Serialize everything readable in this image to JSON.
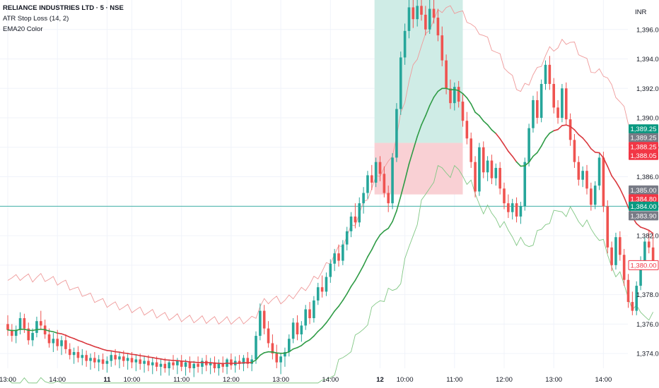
{
  "legend": {
    "title": "RELIANCE INDUSTRIES LTD · 5 · NSE",
    "indicator1": "ATR Stop Loss (14, 2)",
    "indicator2": "EMA20 Color"
  },
  "currency": "INR",
  "colors": {
    "up": "#26a69a",
    "down": "#ef5350",
    "ema": "#d9383e",
    "ema_up": "#2e9b45",
    "atr_upper": "#ef9a9a",
    "atr_lower": "#81c784",
    "profit_zone": "#cfece6",
    "loss_zone": "#f9d0d4",
    "grid": "#f0f3fa"
  },
  "chart_data": {
    "type": "candlestick",
    "ylim": [
      1373,
      1398
    ],
    "y_ticks": [
      "1,374.00",
      "1,376.00",
      "1,378.00",
      "1,380.00",
      "1,382.00",
      "1,384.00",
      "1,386.00",
      "1,388.00",
      "1,390.00",
      "1,392.00",
      "1,394.00",
      "1,396.00"
    ],
    "y_tick_values": [
      1374,
      1376,
      1378,
      1380,
      1382,
      1384,
      1386,
      1388,
      1390,
      1392,
      1394,
      1396
    ],
    "x_labels": [
      {
        "label": "13:00",
        "t": 0
      },
      {
        "label": "14:00",
        "t": 12
      },
      {
        "label": "11",
        "t": 24,
        "day": true
      },
      {
        "label": "10:00",
        "t": 30
      },
      {
        "label": "11:00",
        "t": 42
      },
      {
        "label": "12:00",
        "t": 54
      },
      {
        "label": "13:00",
        "t": 66
      },
      {
        "label": "14:00",
        "t": 78
      },
      {
        "label": "12",
        "t": 90,
        "day": true
      },
      {
        "label": "10:00",
        "t": 96
      },
      {
        "label": "11:00",
        "t": 108
      },
      {
        "label": "12:00",
        "t": 120
      },
      {
        "label": "13:00",
        "t": 132
      },
      {
        "label": "14:00",
        "t": 144
      }
    ],
    "candles": [
      [
        1376.0,
        1376.6,
        1375.2,
        1375.6
      ],
      [
        1375.6,
        1376.0,
        1374.8,
        1375.2
      ],
      [
        1375.2,
        1375.9,
        1374.7,
        1375.6
      ],
      [
        1375.6,
        1376.8,
        1375.3,
        1376.4
      ],
      [
        1376.4,
        1376.7,
        1375.4,
        1375.7
      ],
      [
        1375.7,
        1376.1,
        1374.6,
        1374.9
      ],
      [
        1374.9,
        1375.7,
        1374.5,
        1375.4
      ],
      [
        1375.4,
        1376.5,
        1375.1,
        1376.2
      ],
      [
        1376.2,
        1376.9,
        1375.6,
        1375.9
      ],
      [
        1375.9,
        1376.3,
        1375.0,
        1375.3
      ],
      [
        1375.3,
        1375.7,
        1374.4,
        1374.7
      ],
      [
        1374.7,
        1375.4,
        1374.1,
        1375.0
      ],
      [
        1375.0,
        1375.6,
        1374.2,
        1374.5
      ],
      [
        1374.5,
        1375.2,
        1373.9,
        1374.9
      ],
      [
        1374.9,
        1375.3,
        1374.0,
        1374.3
      ],
      [
        1374.3,
        1374.7,
        1373.6,
        1373.9
      ],
      [
        1373.9,
        1374.4,
        1373.3,
        1374.1
      ],
      [
        1374.1,
        1374.5,
        1373.4,
        1373.7
      ],
      [
        1373.7,
        1374.3,
        1373.2,
        1373.9
      ],
      [
        1373.9,
        1374.2,
        1373.1,
        1373.5
      ],
      [
        1373.5,
        1374.0,
        1372.9,
        1373.7
      ],
      [
        1373.7,
        1374.1,
        1373.0,
        1373.4
      ],
      [
        1373.4,
        1373.9,
        1372.8,
        1373.6
      ],
      [
        1373.6,
        1374.0,
        1372.9,
        1373.3
      ],
      [
        1373.3,
        1373.8,
        1372.7,
        1373.5
      ],
      [
        1373.5,
        1374.2,
        1373.1,
        1373.9
      ],
      [
        1373.9,
        1374.3,
        1373.2,
        1373.6
      ],
      [
        1373.6,
        1374.1,
        1373.0,
        1373.8
      ],
      [
        1373.8,
        1374.2,
        1373.1,
        1373.5
      ],
      [
        1373.5,
        1374.0,
        1372.9,
        1373.7
      ],
      [
        1373.7,
        1374.1,
        1373.0,
        1373.4
      ],
      [
        1373.4,
        1373.9,
        1372.8,
        1373.6
      ],
      [
        1373.6,
        1374.0,
        1372.9,
        1373.3
      ],
      [
        1373.3,
        1373.8,
        1372.7,
        1373.5
      ],
      [
        1373.5,
        1373.9,
        1372.8,
        1373.2
      ],
      [
        1373.2,
        1373.7,
        1372.6,
        1373.4
      ],
      [
        1373.4,
        1373.8,
        1372.8,
        1373.1
      ],
      [
        1373.1,
        1373.6,
        1372.5,
        1373.3
      ],
      [
        1373.3,
        1373.7,
        1372.7,
        1373.0
      ],
      [
        1373.0,
        1373.6,
        1372.5,
        1373.4
      ],
      [
        1373.4,
        1373.9,
        1372.9,
        1373.2
      ],
      [
        1373.2,
        1373.7,
        1372.6,
        1373.5
      ],
      [
        1373.5,
        1373.9,
        1372.8,
        1373.1
      ],
      [
        1373.1,
        1373.6,
        1372.5,
        1373.4
      ],
      [
        1373.4,
        1373.8,
        1372.7,
        1373.0
      ],
      [
        1373.0,
        1373.5,
        1372.4,
        1373.3
      ],
      [
        1373.3,
        1373.8,
        1372.7,
        1373.1
      ],
      [
        1373.1,
        1373.7,
        1372.6,
        1373.5
      ],
      [
        1373.5,
        1373.9,
        1372.8,
        1373.2
      ],
      [
        1373.2,
        1373.7,
        1372.6,
        1373.4
      ],
      [
        1373.4,
        1373.8,
        1372.7,
        1373.0
      ],
      [
        1373.0,
        1373.6,
        1372.5,
        1373.3
      ],
      [
        1373.3,
        1373.8,
        1372.7,
        1373.1
      ],
      [
        1373.1,
        1373.7,
        1372.6,
        1373.6
      ],
      [
        1373.6,
        1374.0,
        1372.9,
        1373.2
      ],
      [
        1373.2,
        1373.8,
        1372.7,
        1373.5
      ],
      [
        1373.5,
        1373.9,
        1372.9,
        1373.3
      ],
      [
        1373.3,
        1373.9,
        1372.8,
        1373.7
      ],
      [
        1373.7,
        1374.1,
        1373.0,
        1373.3
      ],
      [
        1373.3,
        1373.9,
        1372.8,
        1373.6
      ],
      [
        1373.6,
        1375.5,
        1373.3,
        1375.2
      ],
      [
        1375.2,
        1377.4,
        1374.9,
        1376.9
      ],
      [
        1376.9,
        1377.3,
        1375.3,
        1375.7
      ],
      [
        1375.7,
        1376.2,
        1374.4,
        1374.7
      ],
      [
        1374.7,
        1375.3,
        1373.6,
        1374.0
      ],
      [
        1374.0,
        1374.6,
        1373.0,
        1373.4
      ],
      [
        1373.4,
        1374.0,
        1372.6,
        1373.8
      ],
      [
        1373.8,
        1374.4,
        1373.1,
        1374.1
      ],
      [
        1374.1,
        1375.3,
        1373.8,
        1375.0
      ],
      [
        1375.0,
        1376.4,
        1374.7,
        1376.1
      ],
      [
        1376.1,
        1376.6,
        1374.9,
        1375.3
      ],
      [
        1375.3,
        1376.2,
        1374.8,
        1375.9
      ],
      [
        1375.9,
        1377.3,
        1375.6,
        1377.0
      ],
      [
        1377.0,
        1377.5,
        1376.0,
        1376.4
      ],
      [
        1376.4,
        1377.9,
        1376.1,
        1377.6
      ],
      [
        1377.6,
        1378.8,
        1377.3,
        1378.5
      ],
      [
        1378.5,
        1379.3,
        1377.8,
        1378.2
      ],
      [
        1378.2,
        1379.5,
        1377.9,
        1379.2
      ],
      [
        1379.2,
        1380.4,
        1378.8,
        1380.1
      ],
      [
        1380.1,
        1381.1,
        1379.6,
        1380.8
      ],
      [
        1380.8,
        1381.4,
        1379.9,
        1380.3
      ],
      [
        1380.3,
        1381.7,
        1380.0,
        1381.4
      ],
      [
        1381.4,
        1382.6,
        1381.0,
        1382.3
      ],
      [
        1382.3,
        1383.6,
        1381.9,
        1383.3
      ],
      [
        1383.3,
        1384.2,
        1382.5,
        1382.9
      ],
      [
        1382.9,
        1384.6,
        1382.6,
        1384.2
      ],
      [
        1384.2,
        1385.3,
        1383.5,
        1384.9
      ],
      [
        1384.9,
        1386.4,
        1384.5,
        1386.1
      ],
      [
        1386.1,
        1386.8,
        1385.1,
        1385.6
      ],
      [
        1385.6,
        1387.3,
        1385.3,
        1387.0
      ],
      [
        1387.0,
        1387.4,
        1385.7,
        1386.2
      ],
      [
        1386.2,
        1386.7,
        1384.6,
        1384.9
      ],
      [
        1384.9,
        1385.4,
        1383.6,
        1384.2
      ],
      [
        1384.2,
        1387.6,
        1383.8,
        1387.3
      ],
      [
        1387.3,
        1391.0,
        1387.0,
        1390.6
      ],
      [
        1390.6,
        1394.5,
        1390.2,
        1394.1
      ],
      [
        1394.1,
        1396.4,
        1393.6,
        1395.9
      ],
      [
        1395.9,
        1398.0,
        1395.4,
        1397.5
      ],
      [
        1397.5,
        1398.0,
        1396.1,
        1396.7
      ],
      [
        1396.7,
        1398.0,
        1396.2,
        1397.6
      ],
      [
        1397.6,
        1398.0,
        1396.6,
        1397.0
      ],
      [
        1397.0,
        1397.6,
        1395.6,
        1396.0
      ],
      [
        1396.0,
        1398.0,
        1395.7,
        1397.4
      ],
      [
        1397.4,
        1398.0,
        1396.4,
        1396.8
      ],
      [
        1396.8,
        1397.4,
        1395.2,
        1395.6
      ],
      [
        1395.6,
        1396.2,
        1393.5,
        1393.9
      ],
      [
        1393.9,
        1394.3,
        1391.6,
        1392.0
      ],
      [
        1392.0,
        1392.6,
        1390.6,
        1391.0
      ],
      [
        1391.0,
        1392.4,
        1390.5,
        1392.1
      ],
      [
        1392.1,
        1392.5,
        1390.7,
        1391.1
      ],
      [
        1391.1,
        1391.6,
        1389.4,
        1389.8
      ],
      [
        1389.8,
        1390.4,
        1388.2,
        1388.6
      ],
      [
        1388.6,
        1389.0,
        1386.6,
        1387.0
      ],
      [
        1387.0,
        1387.4,
        1384.6,
        1385.0
      ],
      [
        1385.0,
        1388.3,
        1384.7,
        1388.0
      ],
      [
        1388.0,
        1388.4,
        1385.9,
        1386.3
      ],
      [
        1386.3,
        1387.4,
        1385.7,
        1387.1
      ],
      [
        1387.1,
        1387.5,
        1385.5,
        1385.9
      ],
      [
        1385.9,
        1386.9,
        1385.4,
        1386.6
      ],
      [
        1386.6,
        1387.0,
        1384.8,
        1385.2
      ],
      [
        1385.2,
        1385.6,
        1383.8,
        1384.2
      ],
      [
        1384.2,
        1384.8,
        1383.2,
        1383.6
      ],
      [
        1383.6,
        1384.5,
        1383.1,
        1384.2
      ],
      [
        1384.2,
        1384.6,
        1382.9,
        1383.3
      ],
      [
        1383.3,
        1384.3,
        1382.8,
        1384.0
      ],
      [
        1384.0,
        1387.3,
        1383.7,
        1387.0
      ],
      [
        1387.0,
        1389.6,
        1386.7,
        1389.3
      ],
      [
        1389.3,
        1391.5,
        1389.0,
        1391.2
      ],
      [
        1391.2,
        1391.8,
        1389.6,
        1390.0
      ],
      [
        1390.0,
        1392.6,
        1389.7,
        1392.3
      ],
      [
        1392.3,
        1393.9,
        1391.9,
        1393.6
      ],
      [
        1393.6,
        1394.2,
        1391.9,
        1392.3
      ],
      [
        1392.3,
        1392.7,
        1390.3,
        1390.7
      ],
      [
        1390.7,
        1391.2,
        1389.6,
        1390.0
      ],
      [
        1390.0,
        1392.3,
        1389.7,
        1392.0
      ],
      [
        1392.0,
        1392.4,
        1389.5,
        1389.9
      ],
      [
        1389.9,
        1390.3,
        1388.1,
        1388.5
      ],
      [
        1388.5,
        1388.9,
        1386.6,
        1387.0
      ],
      [
        1387.0,
        1387.4,
        1385.4,
        1385.8
      ],
      [
        1385.8,
        1386.7,
        1385.3,
        1386.4
      ],
      [
        1386.4,
        1386.8,
        1384.8,
        1385.2
      ],
      [
        1385.2,
        1385.6,
        1383.7,
        1384.1
      ],
      [
        1384.1,
        1385.7,
        1383.8,
        1385.4
      ],
      [
        1385.4,
        1387.6,
        1385.1,
        1387.3
      ],
      [
        1387.3,
        1387.7,
        1383.6,
        1384.0
      ],
      [
        1384.0,
        1384.4,
        1380.8,
        1381.2
      ],
      [
        1381.2,
        1381.6,
        1379.6,
        1380.0
      ],
      [
        1380.0,
        1382.2,
        1379.7,
        1381.9
      ],
      [
        1381.9,
        1382.3,
        1380.3,
        1380.7
      ],
      [
        1380.7,
        1381.1,
        1378.6,
        1379.0
      ],
      [
        1379.0,
        1379.4,
        1377.1,
        1377.5
      ],
      [
        1377.5,
        1378.2,
        1376.6,
        1376.9
      ],
      [
        1376.9,
        1378.9,
        1376.6,
        1378.6
      ],
      [
        1378.6,
        1380.6,
        1378.3,
        1380.3
      ],
      [
        1380.3,
        1381.9,
        1380.0,
        1381.6
      ],
      [
        1381.6,
        1382.4,
        1380.8,
        1381.2
      ],
      [
        1381.2,
        1382.1,
        1379.9,
        1380.2
      ]
    ],
    "ema20_up_segments": [
      [
        0,
        12
      ],
      [
        60,
        118
      ],
      [
        124,
        132
      ]
    ],
    "trade_box": {
      "t_start": 89,
      "t_end": 110,
      "entry": 1388.3,
      "target": 1398.0,
      "stop": 1384.8
    },
    "price_tags": [
      {
        "label": "1,389.25",
        "value": 1389.25,
        "color": "#089981"
      },
      {
        "label": "1,389.25",
        "value": 1388.65,
        "color": "#787b86"
      },
      {
        "label": "1,388.25",
        "value": 1388.05,
        "color": "#f23645"
      },
      {
        "label": "1,388.05",
        "value": 1387.45,
        "color": "#f23645"
      },
      {
        "label": "1,385.00",
        "value": 1385.1,
        "color": "#787b86"
      },
      {
        "label": "1,384.80",
        "value": 1384.5,
        "color": "#f23645"
      },
      {
        "label": "1,384.00",
        "value": 1384.0,
        "color": "#089981"
      },
      {
        "label": "1,383.90",
        "value": 1383.35,
        "color": "#787b86"
      },
      {
        "label": "1,380.00",
        "value": 1380.0,
        "color": "#ffffff",
        "text": "#f23645",
        "border": "#f23645"
      }
    ],
    "hline": 1384.0
  }
}
